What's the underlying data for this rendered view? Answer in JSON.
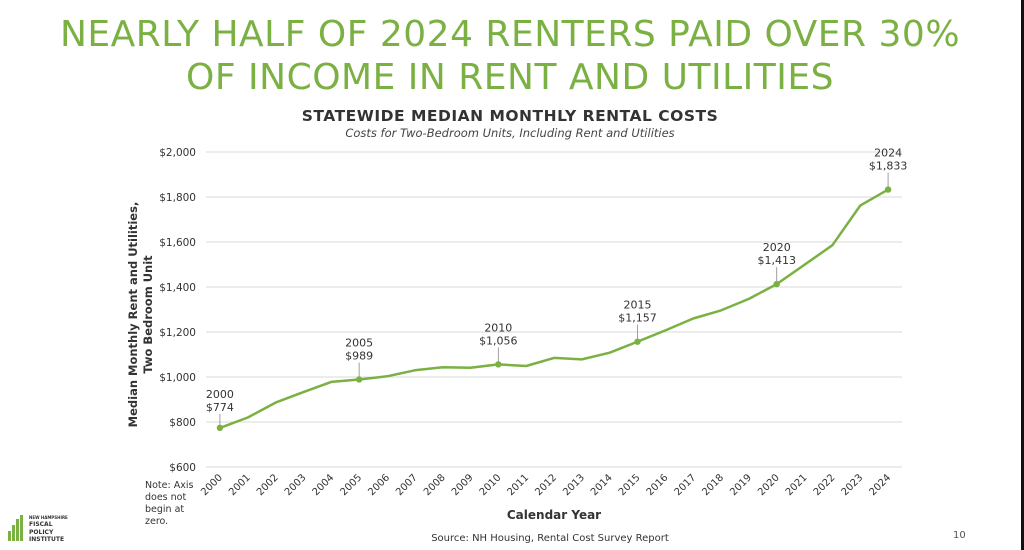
{
  "headline": {
    "line1": "NEARLY HALF OF 2024 RENTERS PAID OVER 30%",
    "line2": "OF INCOME IN RENT AND UTILITIES"
  },
  "note": "Note: Axis does not begin at zero.",
  "source": "Source: NH Housing, Rental Cost Survey Report",
  "page_number": "10",
  "logo": {
    "line1": "NEW HAMPSHIRE",
    "line2": "FISCAL",
    "line3": "POLICY",
    "line4": "INSTITUTE"
  },
  "colors": {
    "accent": "#7bb043",
    "text": "#333333",
    "grid": "#d9d9d9"
  },
  "chart_data": {
    "type": "line",
    "title": "STATEWIDE MEDIAN MONTHLY RENTAL COSTS",
    "subtitle": "Costs for Two-Bedroom Units, Including Rent and Utilities",
    "xlabel": "Calendar Year",
    "ylabel_line1": "Median Monthly Rent and Utilities,",
    "ylabel_line2": "Two Bedroom Unit",
    "ylim": [
      600,
      2000
    ],
    "yticks": [
      600,
      800,
      1000,
      1200,
      1400,
      1600,
      1800,
      2000
    ],
    "ytick_labels": [
      "$600",
      "$800",
      "$1,000",
      "$1,200",
      "$1,400",
      "$1,600",
      "$1,800",
      "$2,000"
    ],
    "grid": true,
    "x": [
      2000,
      2001,
      2002,
      2003,
      2004,
      2005,
      2006,
      2007,
      2008,
      2009,
      2010,
      2011,
      2012,
      2013,
      2014,
      2015,
      2016,
      2017,
      2018,
      2019,
      2020,
      2021,
      2022,
      2023,
      2024
    ],
    "series": [
      {
        "values": [
          774,
          820,
          886,
          933,
          978,
          989,
          1003,
          1030,
          1043,
          1041,
          1056,
          1049,
          1085,
          1078,
          1108,
          1157,
          1207,
          1260,
          1296,
          1347,
          1413,
          1499,
          1586,
          1762,
          1833
        ]
      }
    ],
    "annotations": [
      {
        "year": 2000,
        "year_label": "2000",
        "value_label": "$774"
      },
      {
        "year": 2005,
        "year_label": "2005",
        "value_label": "$989"
      },
      {
        "year": 2010,
        "year_label": "2010",
        "value_label": "$1,056"
      },
      {
        "year": 2015,
        "year_label": "2015",
        "value_label": "$1,157"
      },
      {
        "year": 2020,
        "year_label": "2020",
        "value_label": "$1,413"
      },
      {
        "year": 2024,
        "year_label": "2024",
        "value_label": "$1,833"
      }
    ]
  }
}
